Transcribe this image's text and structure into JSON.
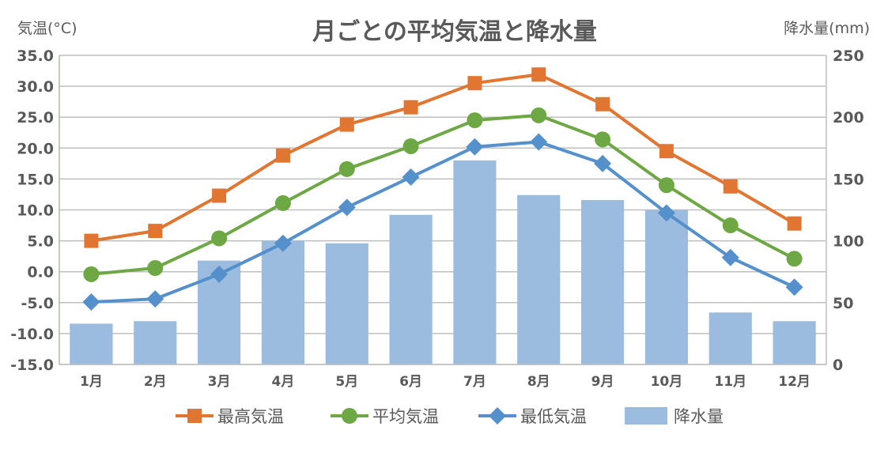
{
  "chart_data": {
    "type": "bar+line",
    "title": "月ごとの平均気温と降水量",
    "ylabel_left": "気温(°C)",
    "ylabel_right": "降水量(mm)",
    "categories": [
      "1月",
      "2月",
      "3月",
      "4月",
      "5月",
      "6月",
      "7月",
      "8月",
      "9月",
      "10月",
      "11月",
      "12月"
    ],
    "ylim_left": [
      -15,
      35
    ],
    "ylim_right": [
      0,
      250
    ],
    "left_ticks": [
      "35.0",
      "30.0",
      "25.0",
      "20.0",
      "15.0",
      "10.0",
      "5.0",
      "0.0",
      "-5.0",
      "-10.0",
      "-15.0"
    ],
    "left_tick_values": [
      35,
      30,
      25,
      20,
      15,
      10,
      5,
      0,
      -5,
      -10,
      -15
    ],
    "right_ticks": [
      "250",
      "200",
      "150",
      "100",
      "50",
      "0"
    ],
    "right_tick_values": [
      250,
      200,
      150,
      100,
      50,
      0
    ],
    "grid": true,
    "legend_position": "bottom",
    "series": [
      {
        "name": "最高気温",
        "type": "line",
        "axis": "left",
        "marker": "square",
        "color": "#E07631",
        "values": [
          5.0,
          6.6,
          12.3,
          18.8,
          23.8,
          26.6,
          30.5,
          31.9,
          27.1,
          19.5,
          13.8,
          7.8
        ]
      },
      {
        "name": "平均気温",
        "type": "line",
        "axis": "left",
        "marker": "circle",
        "color": "#6EA844",
        "values": [
          -0.4,
          0.6,
          5.4,
          11.1,
          16.6,
          20.3,
          24.5,
          25.3,
          21.4,
          14.0,
          7.5,
          2.1
        ]
      },
      {
        "name": "最低気温",
        "type": "line",
        "axis": "left",
        "marker": "diamond",
        "color": "#5490CB",
        "values": [
          -4.9,
          -4.4,
          -0.4,
          4.6,
          10.4,
          15.3,
          20.2,
          21.0,
          17.5,
          9.5,
          2.3,
          -2.5
        ]
      },
      {
        "name": "降水量",
        "type": "bar",
        "axis": "right",
        "color": "#9BBBDF",
        "values": [
          33,
          35,
          84,
          100,
          98,
          121,
          165,
          137,
          133,
          125,
          42,
          35
        ]
      }
    ]
  }
}
